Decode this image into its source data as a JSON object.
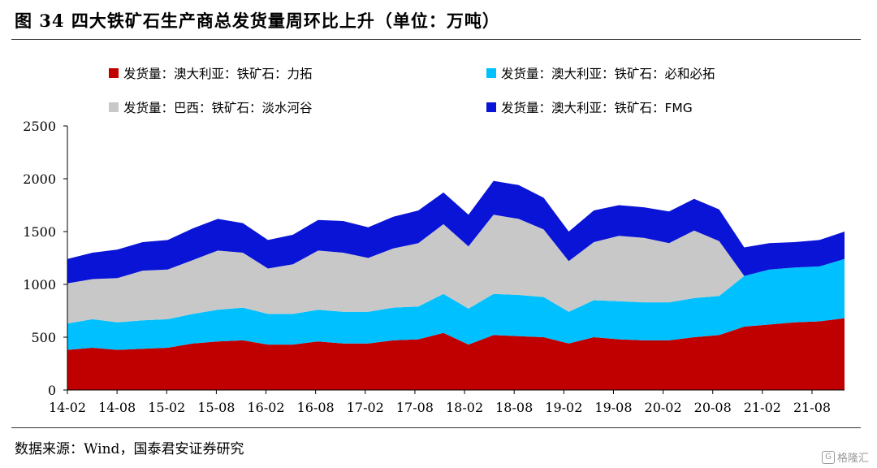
{
  "title": "图 34  四大铁矿石生产商总发货量周环比上升（单位：万吨）",
  "source": "数据来源：Wind，国泰君安证券研究",
  "watermark": "格隆汇",
  "chart_data": {
    "type": "area",
    "stacked": true,
    "title": "图 34  四大铁矿石生产商总发货量周环比上升（单位：万吨）",
    "xlabel": "",
    "ylabel": "",
    "ylim": [
      0,
      2500
    ],
    "yticks": [
      0,
      500,
      1000,
      1500,
      2000,
      2500
    ],
    "x_tick_labels": [
      "14-02",
      "14-08",
      "15-02",
      "15-08",
      "16-02",
      "16-08",
      "17-02",
      "17-08",
      "18-02",
      "18-08",
      "19-02",
      "19-08",
      "20-02",
      "20-08",
      "21-02",
      "21-08"
    ],
    "legend_position": "top",
    "grid": false,
    "x": [
      "14-02",
      "14-05",
      "14-08",
      "14-11",
      "15-02",
      "15-05",
      "15-08",
      "15-11",
      "16-02",
      "16-05",
      "16-08",
      "16-11",
      "17-02",
      "17-05",
      "17-08",
      "17-11",
      "18-02",
      "18-05",
      "18-08",
      "18-11",
      "19-02",
      "19-05",
      "19-08",
      "19-11",
      "20-02",
      "20-05",
      "20-08",
      "20-11",
      "21-02",
      "21-05",
      "21-08",
      "21-11"
    ],
    "series": [
      {
        "name": "发货量：澳大利亚：铁矿石：力拓",
        "color": "#c00000",
        "values": [
          380,
          400,
          380,
          390,
          400,
          440,
          460,
          470,
          430,
          430,
          460,
          440,
          440,
          470,
          480,
          540,
          430,
          520,
          510,
          500,
          440,
          500,
          480,
          470,
          470,
          500,
          520,
          600,
          620,
          640,
          650,
          680
        ]
      },
      {
        "name": "发货量：澳大利亚：铁矿石：必和必拓",
        "color": "#00c0ff",
        "values": [
          250,
          270,
          260,
          270,
          270,
          280,
          300,
          310,
          290,
          290,
          300,
          300,
          300,
          310,
          310,
          370,
          340,
          390,
          390,
          380,
          300,
          350,
          360,
          360,
          360,
          370,
          370,
          480,
          520,
          520,
          520,
          560
        ]
      },
      {
        "name": "发货量：巴西：铁矿石：淡水河谷",
        "color": "#c8c8c8",
        "values": [
          380,
          380,
          420,
          470,
          470,
          510,
          560,
          520,
          430,
          470,
          560,
          560,
          510,
          560,
          600,
          660,
          590,
          750,
          720,
          640,
          480,
          550,
          620,
          610,
          560,
          640,
          520,
          0,
          0,
          0,
          0,
          0
        ]
      },
      {
        "name": "发货量：澳大利亚：铁矿石：FMG",
        "color": "#0a14d6",
        "values": [
          230,
          250,
          270,
          270,
          280,
          300,
          300,
          280,
          270,
          280,
          290,
          300,
          290,
          300,
          310,
          300,
          300,
          320,
          320,
          300,
          280,
          300,
          290,
          290,
          300,
          300,
          300,
          270,
          250,
          240,
          250,
          260
        ]
      }
    ]
  }
}
